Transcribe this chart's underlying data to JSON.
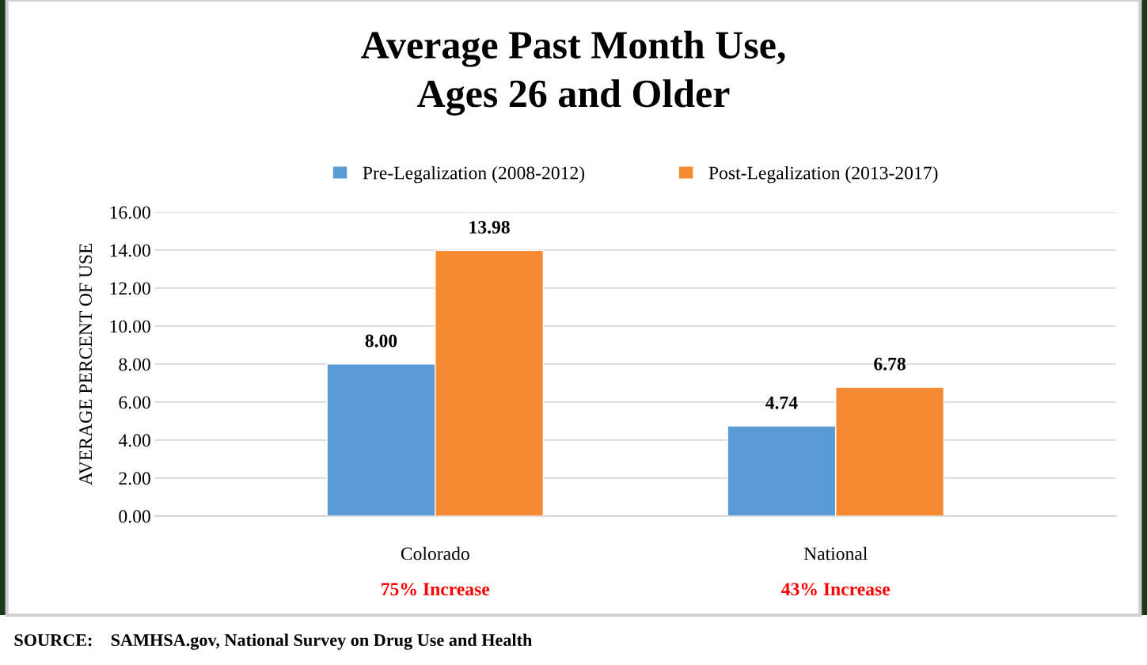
{
  "chart_data": {
    "type": "bar",
    "title": "Average Past Month Use,\nAges 26 and Older",
    "ylabel": "AVERAGE PERCENT OF USE",
    "categories": [
      "Colorado",
      "National"
    ],
    "series": [
      {
        "name": "Pre-Legalization (2008-2012)",
        "color": "#5b9bd5",
        "values": [
          8.0,
          4.74
        ]
      },
      {
        "name": "Post-Legalization (2013-2017)",
        "color": "#f58a33",
        "values": [
          13.98,
          6.78
        ]
      }
    ],
    "ylim": [
      0,
      16
    ],
    "yticks": [
      {
        "value": 0,
        "label": "0.00"
      },
      {
        "value": 2,
        "label": "2.00"
      },
      {
        "value": 4,
        "label": "4.00"
      },
      {
        "value": 6,
        "label": "6.00"
      },
      {
        "value": 8,
        "label": "8.00"
      },
      {
        "value": 10,
        "label": "10.00"
      },
      {
        "value": 12,
        "label": "12.00"
      },
      {
        "value": 14,
        "label": "14.00"
      },
      {
        "value": 16,
        "label": "16.00"
      }
    ],
    "grid": "y",
    "legend": "top",
    "value_labels": [
      [
        "8.00",
        "4.74"
      ],
      [
        "13.98",
        "6.78"
      ]
    ],
    "annotations": [
      "75% Increase",
      "43% Increase",
      "SOURCE:    SAMHSA.gov, National Survey on Drug Use and Health"
    ]
  }
}
